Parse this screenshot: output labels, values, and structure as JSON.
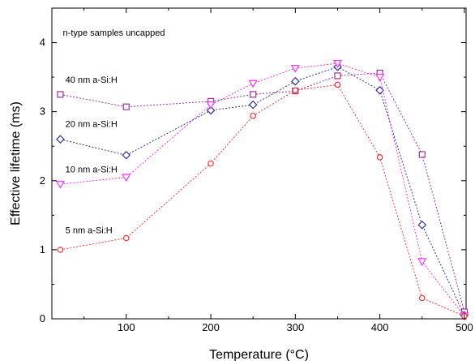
{
  "chart_data": {
    "type": "scatter",
    "title": "",
    "xlabel": "Temperature (°C)",
    "ylabel": "Effective lifetime (ms)",
    "xlim": [
      12,
      502
    ],
    "ylim": [
      0,
      4.5
    ],
    "xticks": [
      100,
      200,
      300,
      400,
      500
    ],
    "yticks": [
      0,
      1,
      2,
      3,
      4
    ],
    "grid": false,
    "annotations": [
      {
        "text": "n-type samples uncapped",
        "x": 25,
        "y": 4.1
      },
      {
        "text": "40 nm a-Si:H",
        "x": 28,
        "y": 3.42
      },
      {
        "text": "20 nm a-Si:H",
        "x": 28,
        "y": 2.78
      },
      {
        "text": "10 nm a-Si:H",
        "x": 28,
        "y": 2.12
      },
      {
        "text": "5 nm a-Si:H",
        "x": 28,
        "y": 1.24
      }
    ],
    "series": [
      {
        "marker": "square",
        "color": "#993399",
        "x": [
          22,
          100,
          200,
          250,
          300,
          350,
          400,
          450,
          500
        ],
        "y": [
          3.25,
          3.07,
          3.15,
          3.25,
          3.3,
          3.52,
          3.56,
          2.38,
          0.1
        ]
      },
      {
        "marker": "diamond",
        "color": "#333399",
        "x": [
          22,
          100,
          200,
          250,
          300,
          350,
          400,
          450,
          500
        ],
        "y": [
          2.6,
          2.37,
          3.02,
          3.1,
          3.44,
          3.65,
          3.31,
          1.36,
          0.05
        ]
      },
      {
        "marker": "triangle-down",
        "color": "#ff33ff",
        "x": [
          22,
          100,
          200,
          250,
          300,
          350,
          400,
          450,
          500
        ],
        "y": [
          1.95,
          2.05,
          3.1,
          3.41,
          3.63,
          3.7,
          3.5,
          0.83,
          0.04
        ]
      },
      {
        "marker": "circle",
        "color": "#ff3333",
        "x": [
          22,
          100,
          200,
          250,
          300,
          350,
          400,
          450,
          500
        ],
        "y": [
          1.0,
          1.17,
          2.25,
          2.94,
          3.31,
          3.39,
          2.34,
          0.3,
          0.04
        ]
      }
    ]
  }
}
